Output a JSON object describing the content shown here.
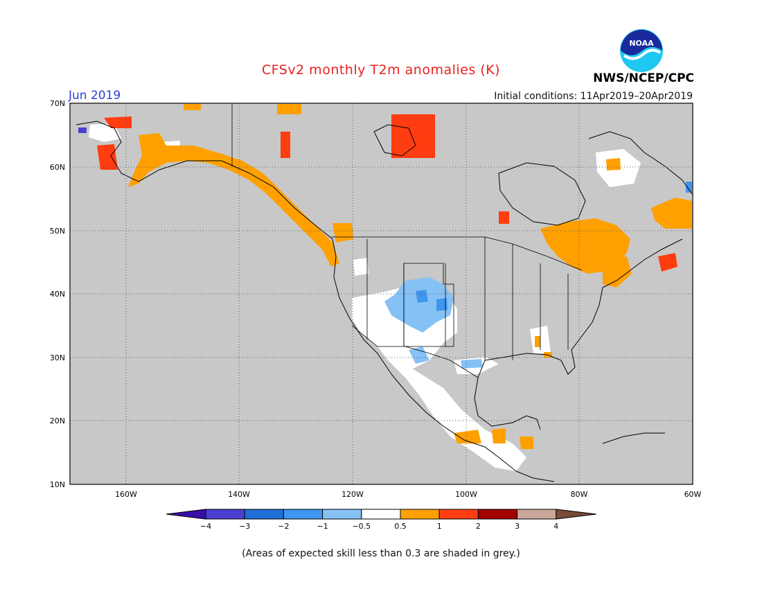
{
  "header": {
    "title": "CFSv2 monthly T2m anomalies (K)",
    "agency": "NWS/NCEP/CPC",
    "month": "Jun 2019",
    "initial_conditions": "Initial conditions: 11Apr2019–20Apr2019",
    "logo_text": "NOAA"
  },
  "map": {
    "lat_labels": [
      "70N",
      "60N",
      "50N",
      "40N",
      "30N",
      "20N",
      "10N"
    ],
    "lon_labels": [
      "160W",
      "140W",
      "120W",
      "100W",
      "80W",
      "60W"
    ],
    "lat_range": [
      10,
      70
    ],
    "lon_range": [
      -170,
      -60
    ],
    "grid": "dotted",
    "background_color_meaning": "grey = low skill"
  },
  "colorbar": {
    "tick_labels": [
      "−4",
      "−3",
      "−2",
      "−1",
      "−0.5",
      "0.5",
      "1",
      "2",
      "3",
      "4"
    ],
    "colors": [
      "#3a0ea8",
      "#4a3fd0",
      "#1e6fd8",
      "#3f96ee",
      "#86c1f6",
      "#ffffff",
      "#ffa000",
      "#ff3d10",
      "#a00000",
      "#c9a69a",
      "#7a4a3a"
    ]
  },
  "footnote": "(Areas of expected skill less than 0.3 are shaded in grey.)"
}
